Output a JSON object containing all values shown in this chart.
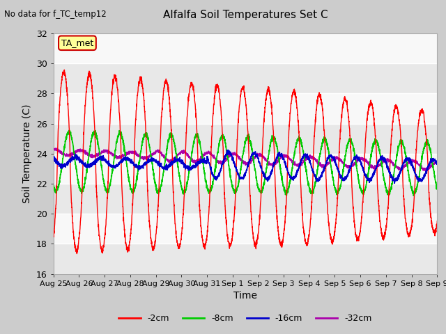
{
  "title": "Alfalfa Soil Temperatures Set C",
  "no_data_text": "No data for f_TC_temp12",
  "xlabel": "Time",
  "ylabel": "Soil Temperature (C)",
  "ylim": [
    16,
    32
  ],
  "yticks": [
    16,
    18,
    20,
    22,
    24,
    26,
    28,
    30,
    32
  ],
  "x_tick_labels": [
    "Aug 25",
    "Aug 26",
    "Aug 27",
    "Aug 28",
    "Aug 29",
    "Aug 30",
    "Aug 31",
    "Sep 1",
    "Sep 2",
    "Sep 3",
    "Sep 4",
    "Sep 5",
    "Sep 6",
    "Sep 7",
    "Sep 8",
    "Sep 9"
  ],
  "legend_colors": [
    "#ff0000",
    "#00cc00",
    "#0000cc",
    "#aa00aa"
  ],
  "legend_labels": [
    "-2cm",
    "-8cm",
    "-16cm",
    "-32cm"
  ],
  "background_color": "#dddddd",
  "plot_bg_light": "#f5f5f5",
  "plot_bg_dark": "#e8e8e8",
  "grid_color": "#ffffff"
}
